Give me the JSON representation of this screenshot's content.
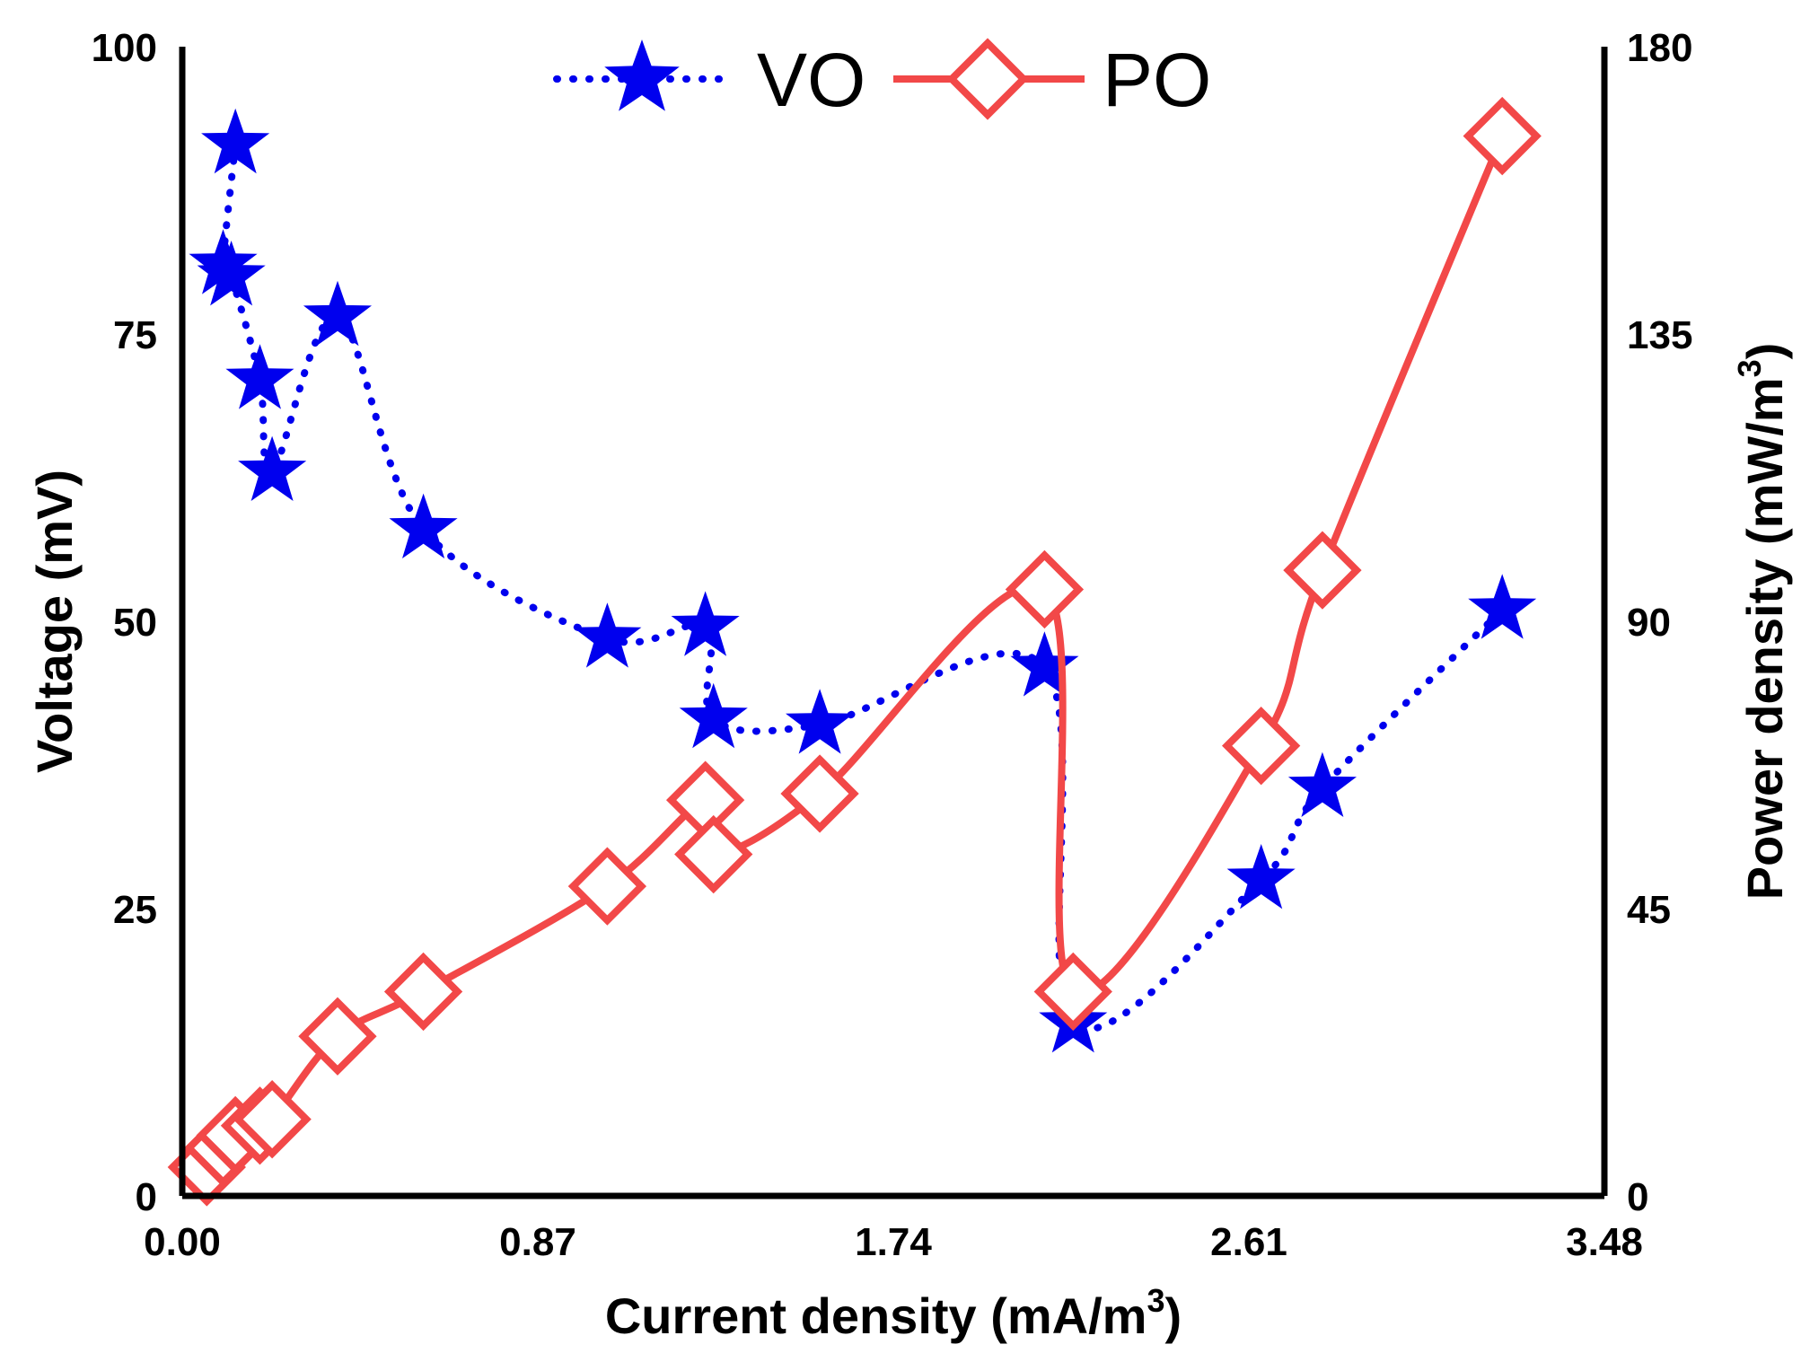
{
  "chart_data": {
    "type": "line",
    "title": "",
    "xlabel": "Current density (mA/m",
    "xlabel_sup": "3",
    "xlabel_close": ")",
    "ylabel_left": "Voltage (mV)",
    "ylabel_right": "Power density (mW/m",
    "ylabel_right_sup": "3",
    "ylabel_right_close": ")",
    "xlim": [
      0,
      3.48
    ],
    "ylim_left": [
      0,
      100
    ],
    "ylim_right": [
      0,
      180
    ],
    "x_ticks": [
      "0.00",
      "0.87",
      "1.74",
      "2.61",
      "3.48"
    ],
    "y_left_ticks": [
      "0",
      "25",
      "50",
      "75",
      "100"
    ],
    "y_right_ticks": [
      "0",
      "45",
      "90",
      "135",
      "180"
    ],
    "legend_position": "top-center",
    "series": [
      {
        "name": "VO",
        "axis": "left",
        "color": "#0000ee",
        "marker": "star",
        "line_style": "dotted",
        "x": [
          0.13,
          0.1,
          0.12,
          0.19,
          0.22,
          0.38,
          0.59,
          1.04,
          1.28,
          1.3,
          1.56,
          2.11,
          2.18,
          2.64,
          2.79,
          3.23
        ],
        "y": [
          91.5,
          81.0,
          80.0,
          71.0,
          63.0,
          76.5,
          58.0,
          48.5,
          49.5,
          41.5,
          41.0,
          46.0,
          15.0,
          27.5,
          35.5,
          51.0
        ]
      },
      {
        "name": "PO",
        "axis": "right",
        "color": "#f24848",
        "marker": "diamond",
        "line_style": "solid",
        "x": [
          0.06,
          0.1,
          0.13,
          0.19,
          0.22,
          0.38,
          0.59,
          1.04,
          1.28,
          1.3,
          1.56,
          2.11,
          2.18,
          2.64,
          2.79,
          3.23
        ],
        "y": [
          4.5,
          7.5,
          9.5,
          11.0,
          12.0,
          25.0,
          32.0,
          48.5,
          62.0,
          53.5,
          63.0,
          95.0,
          32.0,
          70.5,
          98.0,
          166.0
        ]
      }
    ]
  }
}
